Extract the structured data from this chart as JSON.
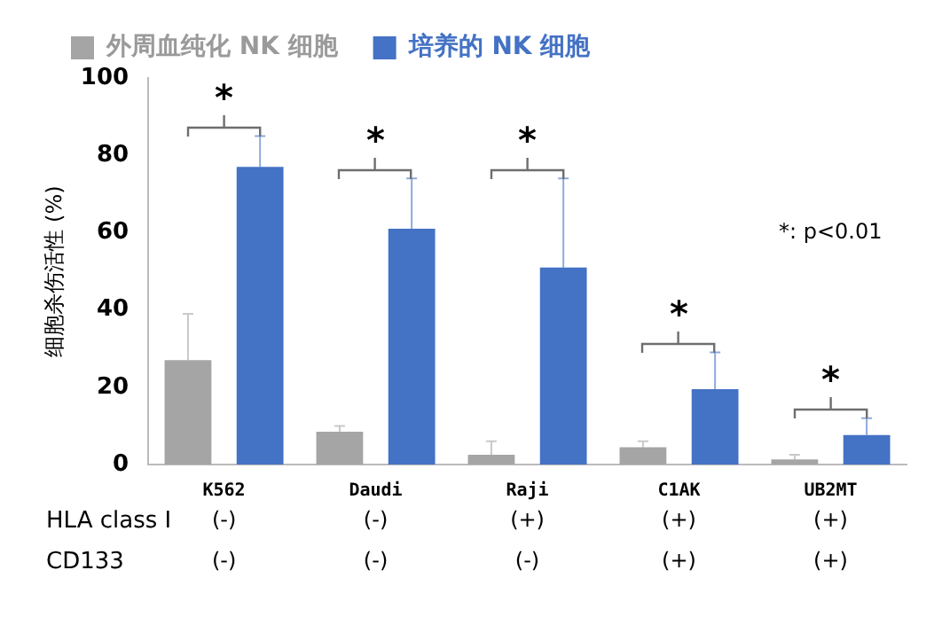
{
  "chart_data": {
    "type": "bar",
    "ylabel": "细胞杀伤活性 (%)",
    "categories": [
      "K562",
      "Daudi",
      "Raji",
      "C1AK",
      "UB2MT"
    ],
    "series": [
      {
        "name": "外周血纯化 NK 细胞",
        "color": "#a5a5a5",
        "values": [
          27,
          8.5,
          2.5,
          4.5,
          1.3
        ],
        "errors": [
          [
            27,
            39
          ],
          [
            8.5,
            10
          ],
          [
            2.5,
            6
          ],
          [
            4.5,
            6
          ],
          [
            1.3,
            2.5
          ]
        ]
      },
      {
        "name": "培养的 NK 细胞",
        "color": "#4472c4",
        "values": [
          77,
          61,
          51,
          19.5,
          7.6
        ],
        "errors": [
          [
            77,
            85
          ],
          [
            61,
            74
          ],
          [
            51,
            74
          ],
          [
            19.5,
            29
          ],
          [
            7.6,
            12
          ]
        ]
      }
    ],
    "ylim": [
      0,
      100
    ],
    "yticks": [
      0,
      20,
      40,
      60,
      80,
      100
    ],
    "grid": false,
    "legend": "top",
    "annotations": [
      "*",
      "*",
      "*",
      "*",
      "*",
      "*: p<0.01",
      "HLA class I",
      "(-)",
      "(-)",
      "(+)",
      "(+)",
      "(+)",
      "CD133",
      "(-)",
      "(-)",
      "(-)",
      "(+)",
      "(+)"
    ]
  }
}
